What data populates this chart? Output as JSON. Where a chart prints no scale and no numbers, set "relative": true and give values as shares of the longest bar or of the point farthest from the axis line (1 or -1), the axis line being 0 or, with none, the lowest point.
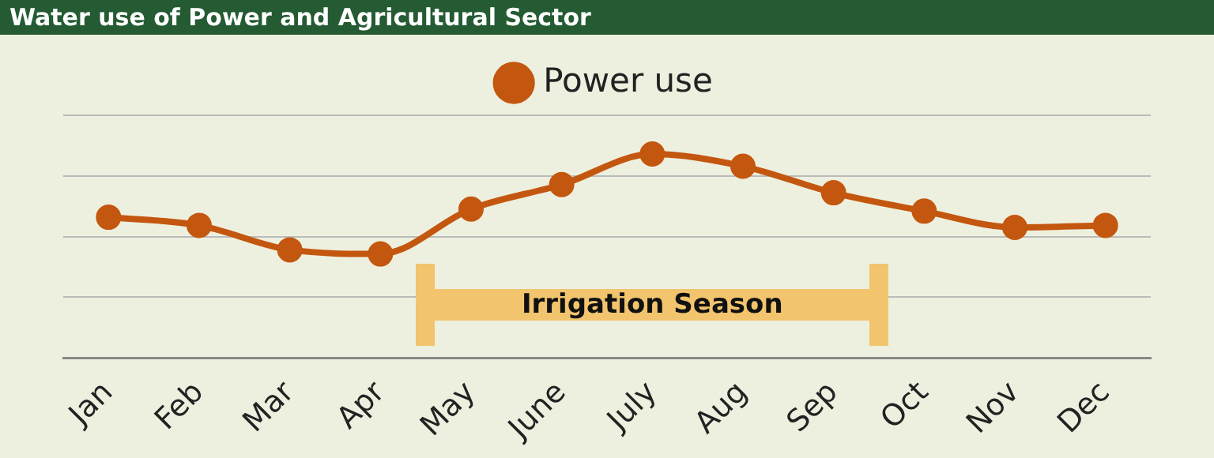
{
  "chart_data": {
    "type": "line",
    "title": "Water use of Power and Agricultural Sector",
    "categories": [
      "Jan",
      "Feb",
      "Mar",
      "Apr",
      "May",
      "June",
      "July",
      "Aug",
      "Sep",
      "Oct",
      "Nov",
      "Dec"
    ],
    "series": [
      {
        "name": "Power use",
        "color": "#c4570f",
        "values": [
          0.69,
          0.65,
          0.53,
          0.51,
          0.73,
          0.85,
          1,
          0.94,
          0.81,
          0.72,
          0.64,
          0.65
        ]
      }
    ],
    "relative": true,
    "grid": "y",
    "legend": "top",
    "marker": "circle",
    "line_style": "solid",
    "annotations": [
      "Irrigation Season"
    ]
  }
}
